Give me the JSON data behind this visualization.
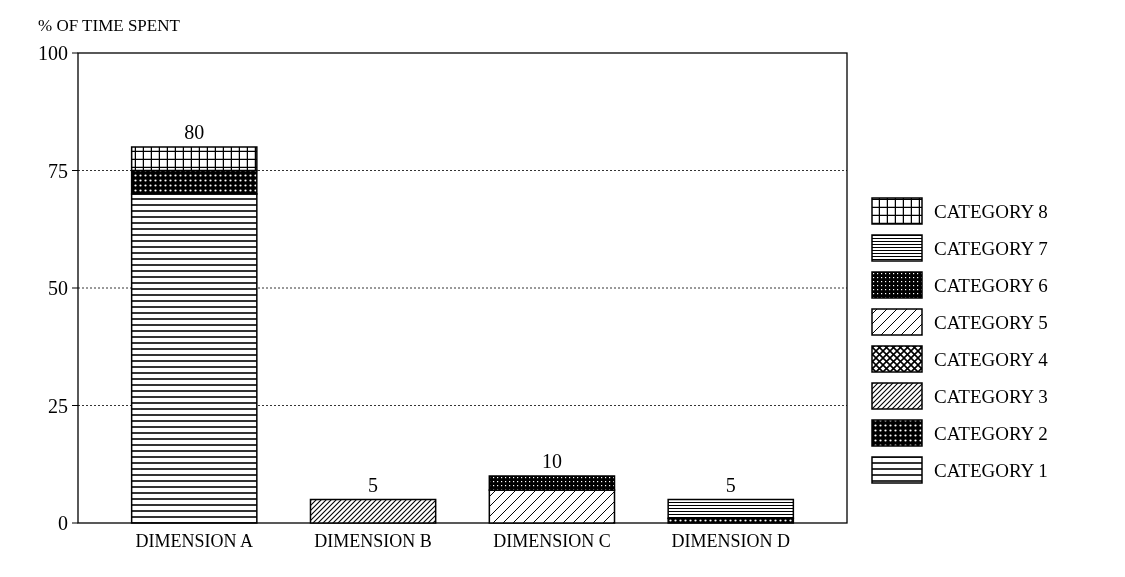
{
  "chart_data": {
    "type": "bar",
    "ylabel": "% OF TIME SPENT",
    "categories": [
      "DIMENSION A",
      "DIMENSION B",
      "DIMENSION C",
      "DIMENSION D"
    ],
    "stacked": true,
    "ylim": [
      0,
      100
    ],
    "yticks": [
      0,
      25,
      50,
      75,
      100
    ],
    "grid": "y",
    "legend": "right",
    "totals": [
      "80",
      "5",
      "10",
      "5"
    ],
    "series": [
      {
        "name": "CATEGORY 1",
        "color": "#000000",
        "values": [
          70,
          null,
          null,
          null
        ]
      },
      {
        "name": "CATEGORY 2",
        "color": "#000000",
        "values": [
          5,
          null,
          null,
          1
        ]
      },
      {
        "name": "CATEGORY 3",
        "color": "#000000",
        "values": [
          null,
          5,
          null,
          null
        ]
      },
      {
        "name": "CATEGORY 4",
        "color": "#000000",
        "values": [
          null,
          null,
          null,
          null
        ]
      },
      {
        "name": "CATEGORY 5",
        "color": "#000000",
        "values": [
          null,
          null,
          7,
          null
        ]
      },
      {
        "name": "CATEGORY 6",
        "color": "#000000",
        "values": [
          null,
          null,
          3,
          null
        ]
      },
      {
        "name": "CATEGORY 7",
        "color": "#000000",
        "values": [
          null,
          null,
          null,
          4
        ]
      },
      {
        "name": "CATEGORY 8",
        "color": "#000000",
        "values": [
          5,
          null,
          null,
          null
        ]
      }
    ]
  }
}
